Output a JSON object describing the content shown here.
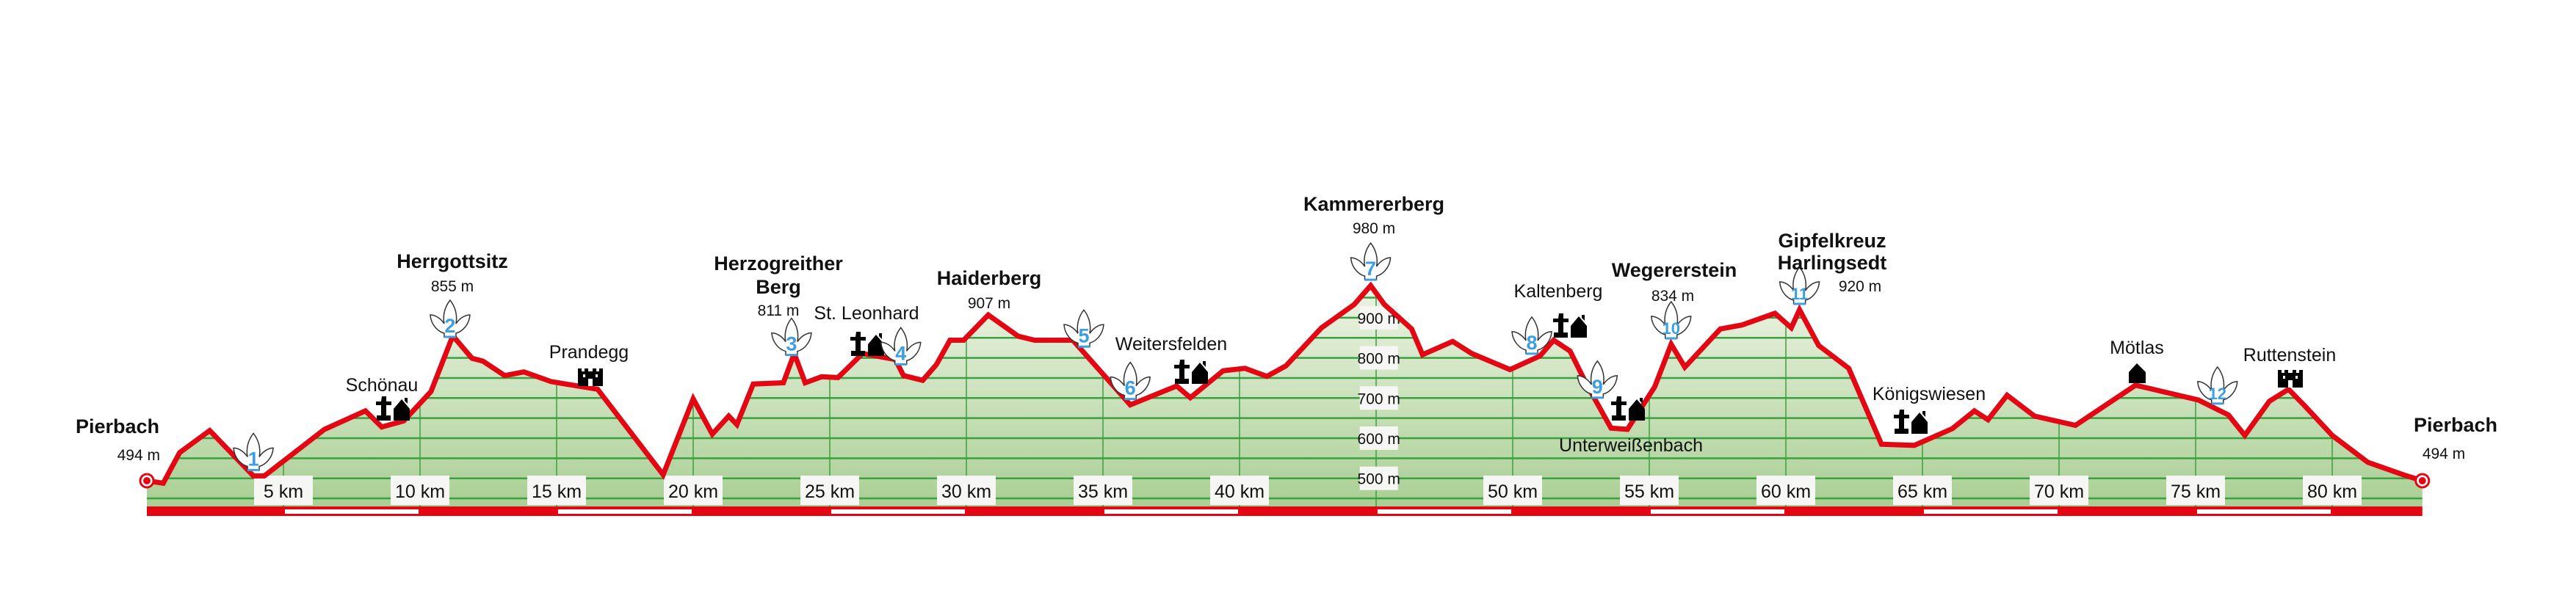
{
  "chart_data": {
    "type": "area",
    "title": "",
    "xlabel": "",
    "ylabel": "",
    "x_unit": "km",
    "y_unit": "m",
    "xlim": [
      0,
      83.3
    ],
    "ylim": [
      430,
      1000
    ],
    "grid": true,
    "colors": {
      "line": "#e30613",
      "fill_top": "#eef4e4",
      "fill_bottom": "#a9cf94",
      "grid": "#3aa040",
      "waypoint_number": "#3d9fe0",
      "bar_red": "#e30613",
      "bar_white": "#ffffff"
    },
    "x_ticks": [
      {
        "value": 5,
        "label": "5 km"
      },
      {
        "value": 10,
        "label": "10 km"
      },
      {
        "value": 15,
        "label": "15 km"
      },
      {
        "value": 20,
        "label": "20 km"
      },
      {
        "value": 25,
        "label": "25 km"
      },
      {
        "value": 30,
        "label": "30 km"
      },
      {
        "value": 35,
        "label": "35 km"
      },
      {
        "value": 40,
        "label": "40 km"
      },
      {
        "value": 50,
        "label": "50 km"
      },
      {
        "value": 55,
        "label": "55 km"
      },
      {
        "value": 60,
        "label": "60 km"
      },
      {
        "value": 65,
        "label": "65 km"
      },
      {
        "value": 70,
        "label": "70 km"
      },
      {
        "value": 75,
        "label": "75 km"
      },
      {
        "value": 80,
        "label": "80 km"
      }
    ],
    "y_ticks": [
      {
        "value": 900,
        "label": "900 m"
      },
      {
        "value": 800,
        "label": "800 m"
      },
      {
        "value": 700,
        "label": "700 m"
      },
      {
        "value": 600,
        "label": "600 m"
      },
      {
        "value": 500,
        "label": "500 m"
      }
    ],
    "profile": [
      [
        0,
        494
      ],
      [
        0.6,
        488
      ],
      [
        1.2,
        564
      ],
      [
        2.3,
        619
      ],
      [
        3.9,
        506
      ],
      [
        4.3,
        506
      ],
      [
        6.5,
        622
      ],
      [
        8.0,
        668
      ],
      [
        8.6,
        628
      ],
      [
        9.4,
        643
      ],
      [
        10.4,
        716
      ],
      [
        11.2,
        855
      ],
      [
        11.9,
        799
      ],
      [
        12.3,
        792
      ],
      [
        13.1,
        756
      ],
      [
        13.8,
        765
      ],
      [
        14.8,
        741
      ],
      [
        16.5,
        722
      ],
      [
        18.9,
        509
      ],
      [
        20.0,
        698
      ],
      [
        20.7,
        610
      ],
      [
        21.3,
        655
      ],
      [
        21.6,
        634
      ],
      [
        22.2,
        735
      ],
      [
        23.3,
        738
      ],
      [
        23.7,
        811
      ],
      [
        24.1,
        738
      ],
      [
        24.7,
        753
      ],
      [
        25.3,
        751
      ],
      [
        26.2,
        811
      ],
      [
        27.4,
        796
      ],
      [
        27.7,
        756
      ],
      [
        28.4,
        744
      ],
      [
        28.9,
        783
      ],
      [
        29.4,
        844
      ],
      [
        29.9,
        844
      ],
      [
        30.8,
        907
      ],
      [
        31.9,
        854
      ],
      [
        32.5,
        844
      ],
      [
        33.9,
        844
      ],
      [
        36.0,
        683
      ],
      [
        37.7,
        730
      ],
      [
        38.2,
        701
      ],
      [
        39.4,
        768
      ],
      [
        40.2,
        774
      ],
      [
        41.0,
        754
      ],
      [
        41.7,
        780
      ],
      [
        43.0,
        875
      ],
      [
        44.2,
        933
      ],
      [
        44.8,
        980
      ],
      [
        45.3,
        933
      ],
      [
        46.3,
        872
      ],
      [
        46.7,
        808
      ],
      [
        47.8,
        841
      ],
      [
        48.5,
        811
      ],
      [
        49.9,
        771
      ],
      [
        51.0,
        805
      ],
      [
        51.5,
        844
      ],
      [
        52.1,
        817
      ],
      [
        52.7,
        735
      ],
      [
        53.6,
        625
      ],
      [
        54.2,
        622
      ],
      [
        55.2,
        728
      ],
      [
        55.8,
        834
      ],
      [
        56.3,
        777
      ],
      [
        57.6,
        872
      ],
      [
        58.4,
        882
      ],
      [
        59.6,
        911
      ],
      [
        60.2,
        875
      ],
      [
        60.5,
        920
      ],
      [
        61.2,
        831
      ],
      [
        62.3,
        774
      ],
      [
        63.5,
        585
      ],
      [
        64.7,
        582
      ],
      [
        66.1,
        624
      ],
      [
        66.9,
        668
      ],
      [
        67.4,
        646
      ],
      [
        68.1,
        707
      ],
      [
        69.1,
        655
      ],
      [
        70.6,
        632
      ],
      [
        72.8,
        732
      ],
      [
        75.1,
        695
      ],
      [
        76.2,
        658
      ],
      [
        76.8,
        607
      ],
      [
        77.7,
        692
      ],
      [
        78.4,
        722
      ],
      [
        79.0,
        680
      ],
      [
        80.0,
        607
      ],
      [
        81.3,
        540
      ],
      [
        82.6,
        509
      ],
      [
        83.3,
        494
      ]
    ],
    "waypoints": [
      {
        "number": "1",
        "km": 3.9
      },
      {
        "number": "2",
        "km": 11.1
      },
      {
        "number": "3",
        "km": 23.6
      },
      {
        "number": "4",
        "km": 27.6
      },
      {
        "number": "5",
        "km": 34.3
      },
      {
        "number": "6",
        "km": 36.0
      },
      {
        "number": "7",
        "km": 44.8
      },
      {
        "number": "8",
        "km": 50.7
      },
      {
        "number": "9",
        "km": 53.1
      },
      {
        "number": "10",
        "km": 55.8
      },
      {
        "number": "11",
        "km": 60.5
      },
      {
        "number": "12",
        "km": 75.8
      }
    ],
    "labels": [
      {
        "id": "pierbach-start",
        "lines": [
          "Pierbach"
        ],
        "elevation": "494 m",
        "bold": true
      },
      {
        "id": "herrgottsitz",
        "lines": [
          "Herrgottsitz"
        ],
        "elevation": "855 m",
        "bold": true
      },
      {
        "id": "schoenau",
        "lines": [
          "Schönau"
        ],
        "bold": false,
        "icon": "church-village-icon"
      },
      {
        "id": "prandegg",
        "lines": [
          "Prandegg"
        ],
        "bold": false,
        "icon": "castle-icon"
      },
      {
        "id": "herzogreither-berg",
        "lines": [
          "Herzogreither",
          "Berg"
        ],
        "elevation": "811 m",
        "bold": true
      },
      {
        "id": "st-leonhard",
        "lines": [
          "St. Leonhard"
        ],
        "bold": false,
        "icon": "church-village-icon"
      },
      {
        "id": "haiderberg",
        "lines": [
          "Haiderberg"
        ],
        "elevation": "907 m",
        "bold": true
      },
      {
        "id": "weitersfelden",
        "lines": [
          "Weitersfelden"
        ],
        "bold": false,
        "icon": "church-village-icon"
      },
      {
        "id": "kammererberg",
        "lines": [
          "Kammererberg"
        ],
        "elevation": "980 m",
        "bold": true
      },
      {
        "id": "kaltenberg",
        "lines": [
          "Kaltenberg"
        ],
        "bold": false,
        "icon": "church-village-icon"
      },
      {
        "id": "wegererstein",
        "lines": [
          "Wegererstein"
        ],
        "elevation": "834 m",
        "bold": true
      },
      {
        "id": "unterweissenbach",
        "lines": [
          "Unterweißenbach"
        ],
        "bold": false,
        "icon": "church-village-icon"
      },
      {
        "id": "gipfelkreuz-harlingsedt",
        "lines": [
          "Gipfelkreuz",
          "Harlingsedt"
        ],
        "elevation": "920 m",
        "bold": true
      },
      {
        "id": "koenigswiesen",
        "lines": [
          "Königswiesen"
        ],
        "bold": false,
        "icon": "church-village-icon"
      },
      {
        "id": "moetlas",
        "lines": [
          "Mötlas"
        ],
        "bold": false,
        "icon": "house-icon"
      },
      {
        "id": "ruttenstein",
        "lines": [
          "Ruttenstein"
        ],
        "bold": false,
        "icon": "castle-icon"
      },
      {
        "id": "pierbach-end",
        "lines": [
          "Pierbach"
        ],
        "elevation": "494 m",
        "bold": true
      }
    ]
  }
}
